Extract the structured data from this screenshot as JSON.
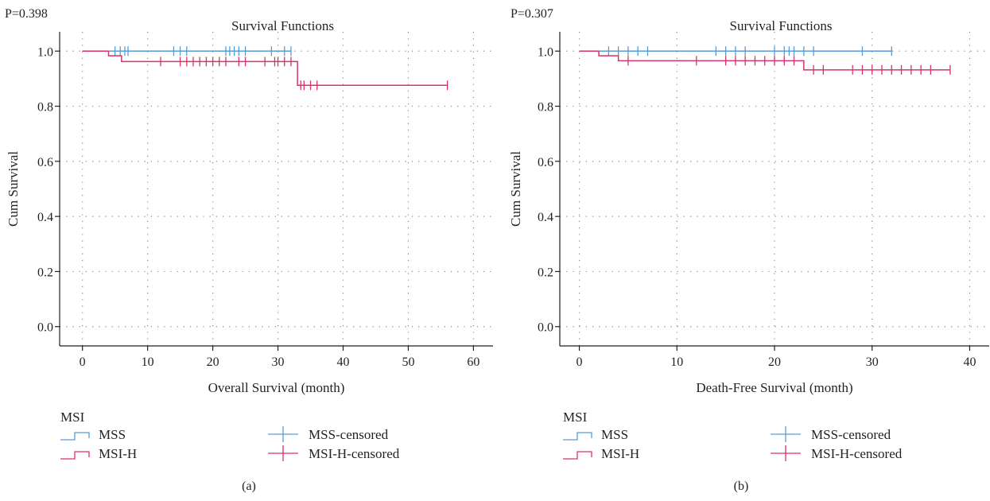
{
  "panels": [
    {
      "pvalue_text": "P=0.398",
      "caption": "(a)",
      "chart_data": {
        "type": "line",
        "title": "Survival Functions",
        "xlabel": "Overall Survival (month)",
        "ylabel": "Cum Survival",
        "xlim": [
          -3.5,
          63
        ],
        "ylim": [
          -0.07,
          1.07
        ],
        "xticks": [
          0,
          10,
          20,
          30,
          40,
          50,
          60
        ],
        "yticks": [
          0.0,
          0.2,
          0.4,
          0.6,
          0.8,
          1.0
        ],
        "ytick_labels": [
          "0.0",
          "0.2",
          "0.4",
          "0.6",
          "0.8",
          "1.0"
        ],
        "grid": true,
        "legend_title": "MSI",
        "legend_position": "bottom",
        "series": [
          {
            "name": "MSS",
            "color": "#5b9bd5",
            "step_x": [
              0,
              32
            ],
            "step_y": [
              1.0,
              1.0
            ],
            "censored_x": [
              5,
              5.8,
              6.5,
              7,
              14,
              15,
              16,
              22,
              22.6,
              23.3,
              24,
              25,
              29,
              31,
              32
            ],
            "censored_y": [
              1.0,
              1.0,
              1.0,
              1.0,
              1.0,
              1.0,
              1.0,
              1.0,
              1.0,
              1.0,
              1.0,
              1.0,
              1.0,
              1.0,
              1.0
            ]
          },
          {
            "name": "MSI-H",
            "color": "#d6336c",
            "step_x": [
              0,
              4,
              6,
              33,
              56
            ],
            "step_y": [
              1.0,
              0.983,
              0.962,
              0.876,
              0.876
            ],
            "censored_x": [
              12,
              15,
              16,
              17,
              18,
              19,
              20,
              21,
              22,
              24,
              25,
              28,
              29.5,
              30,
              31,
              32,
              33.5,
              34,
              35,
              36,
              56
            ],
            "censored_y": [
              0.962,
              0.962,
              0.962,
              0.962,
              0.962,
              0.962,
              0.962,
              0.962,
              0.962,
              0.962,
              0.962,
              0.962,
              0.962,
              0.962,
              0.962,
              0.962,
              0.876,
              0.876,
              0.876,
              0.876,
              0.876
            ]
          }
        ],
        "legend": [
          {
            "label": "MSS",
            "kind": "step",
            "series": 0
          },
          {
            "label": "MSS-censored",
            "kind": "censored",
            "series": 0
          },
          {
            "label": "MSI-H",
            "kind": "step",
            "series": 1
          },
          {
            "label": "MSI-H-censored",
            "kind": "censored",
            "series": 1
          }
        ]
      }
    },
    {
      "pvalue_text": "P=0.307",
      "caption": "(b)",
      "chart_data": {
        "type": "line",
        "title": "Survival Functions",
        "xlabel": "Death-Free Survival (month)",
        "ylabel": "Cum Survival",
        "xlim": [
          -2,
          42
        ],
        "ylim": [
          -0.07,
          1.07
        ],
        "xticks": [
          0,
          10,
          20,
          30,
          40
        ],
        "yticks": [
          0.0,
          0.2,
          0.4,
          0.6,
          0.8,
          1.0
        ],
        "ytick_labels": [
          "0.0",
          "0.2",
          "0.4",
          "0.6",
          "0.8",
          "1.0"
        ],
        "grid": true,
        "legend_title": "MSI",
        "legend_position": "bottom",
        "series": [
          {
            "name": "MSS",
            "color": "#5b9bd5",
            "step_x": [
              0,
              32
            ],
            "step_y": [
              1.0,
              1.0
            ],
            "censored_x": [
              3,
              4,
              5,
              6,
              7,
              14,
              15,
              16,
              17,
              20,
              21,
              21.5,
              22,
              23,
              24,
              29,
              32
            ],
            "censored_y": [
              1.0,
              1.0,
              1.0,
              1.0,
              1.0,
              1.0,
              1.0,
              1.0,
              1.0,
              1.0,
              1.0,
              1.0,
              1.0,
              1.0,
              1.0,
              1.0,
              1.0
            ]
          },
          {
            "name": "MSI-H",
            "color": "#d6336c",
            "step_x": [
              0,
              2,
              4,
              23,
              38
            ],
            "step_y": [
              1.0,
              0.983,
              0.965,
              0.932,
              0.932
            ],
            "censored_x": [
              5,
              12,
              15,
              16,
              17,
              18,
              19,
              20,
              21,
              22,
              24,
              25,
              28,
              29,
              30,
              31,
              32,
              33,
              34,
              35,
              36,
              38
            ],
            "censored_y": [
              0.965,
              0.965,
              0.965,
              0.965,
              0.965,
              0.965,
              0.965,
              0.965,
              0.965,
              0.965,
              0.932,
              0.932,
              0.932,
              0.932,
              0.932,
              0.932,
              0.932,
              0.932,
              0.932,
              0.932,
              0.932,
              0.932
            ]
          }
        ],
        "legend": [
          {
            "label": "MSS",
            "kind": "step",
            "series": 0
          },
          {
            "label": "MSS-censored",
            "kind": "censored",
            "series": 0
          },
          {
            "label": "MSI-H",
            "kind": "step",
            "series": 1
          },
          {
            "label": "MSI-H-censored",
            "kind": "censored",
            "series": 1
          }
        ]
      }
    }
  ]
}
